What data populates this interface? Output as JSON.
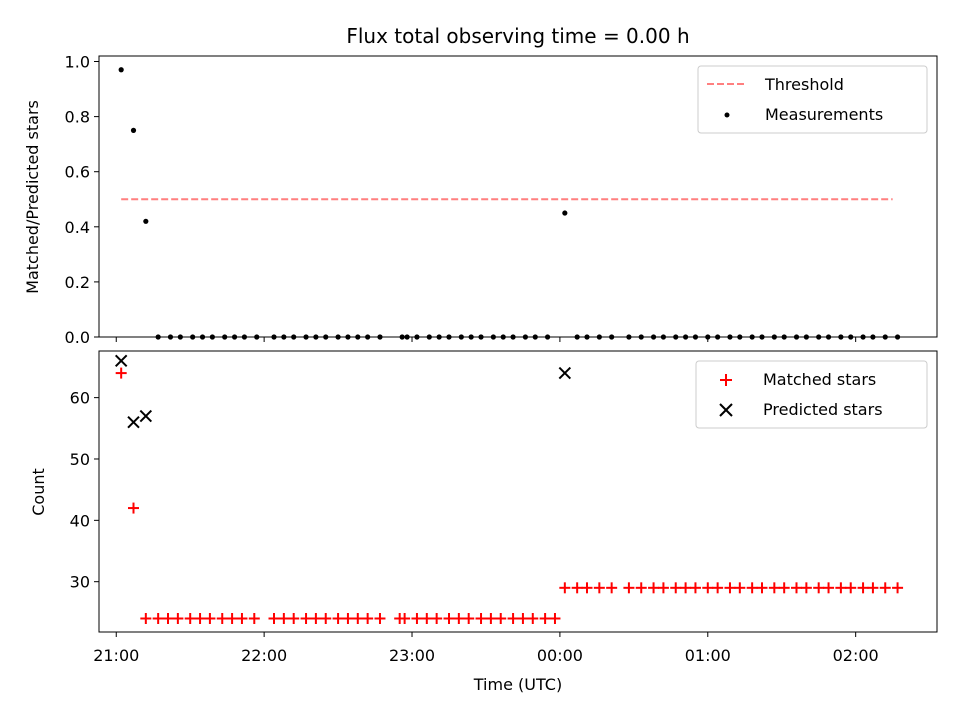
{
  "chart_data": [
    {
      "type": "scatter",
      "title": "Flux total observing time = 0.00 h",
      "xlabel": "",
      "ylabel": "Matched/Predicted stars",
      "x_unit": "time (UTC)",
      "xlim": [
        "20:53",
        "02:33"
      ],
      "ylim": [
        0,
        1.02
      ],
      "yticks": [
        0.0,
        0.2,
        0.4,
        0.6,
        0.8,
        1.0
      ],
      "ytick_labels": [
        "0.0",
        "0.2",
        "0.4",
        "0.6",
        "0.8",
        "1.0"
      ],
      "legend": "top-right",
      "grid": false,
      "series": [
        {
          "name": "Threshold",
          "kind": "line",
          "style": "dashed",
          "color": "#ff7f7f",
          "points": [
            {
              "x": "21:02",
              "y": 0.5
            },
            {
              "x": "02:15",
              "y": 0.5
            }
          ]
        },
        {
          "name": "Measurements",
          "kind": "scatter",
          "marker": "dot",
          "color": "#000000",
          "points": [
            {
              "x": "21:02",
              "y": 0.97
            },
            {
              "x": "21:07",
              "y": 0.75
            },
            {
              "x": "21:12",
              "y": 0.42
            },
            {
              "x": "21:17",
              "y": 0.0
            },
            {
              "x": "21:22",
              "y": 0.0
            },
            {
              "x": "21:26",
              "y": 0.0
            },
            {
              "x": "21:31",
              "y": 0.0
            },
            {
              "x": "21:35",
              "y": 0.0
            },
            {
              "x": "21:39",
              "y": 0.0
            },
            {
              "x": "21:44",
              "y": 0.0
            },
            {
              "x": "21:48",
              "y": 0.0
            },
            {
              "x": "21:52",
              "y": 0.0
            },
            {
              "x": "21:57",
              "y": 0.0
            },
            {
              "x": "22:04",
              "y": 0.0
            },
            {
              "x": "22:08",
              "y": 0.0
            },
            {
              "x": "22:12",
              "y": 0.0
            },
            {
              "x": "22:17",
              "y": 0.0
            },
            {
              "x": "22:21",
              "y": 0.0
            },
            {
              "x": "22:25",
              "y": 0.0
            },
            {
              "x": "22:30",
              "y": 0.0
            },
            {
              "x": "22:34",
              "y": 0.0
            },
            {
              "x": "22:38",
              "y": 0.0
            },
            {
              "x": "22:42",
              "y": 0.0
            },
            {
              "x": "22:47",
              "y": 0.0
            },
            {
              "x": "22:56",
              "y": 0.0
            },
            {
              "x": "22:58",
              "y": 0.0
            },
            {
              "x": "23:02",
              "y": 0.0
            },
            {
              "x": "23:07",
              "y": 0.0
            },
            {
              "x": "23:11",
              "y": 0.0
            },
            {
              "x": "23:15",
              "y": 0.0
            },
            {
              "x": "23:20",
              "y": 0.0
            },
            {
              "x": "23:24",
              "y": 0.0
            },
            {
              "x": "23:28",
              "y": 0.0
            },
            {
              "x": "23:33",
              "y": 0.0
            },
            {
              "x": "23:37",
              "y": 0.0
            },
            {
              "x": "23:41",
              "y": 0.0
            },
            {
              "x": "23:46",
              "y": 0.0
            },
            {
              "x": "23:50",
              "y": 0.0
            },
            {
              "x": "23:55",
              "y": 0.0
            },
            {
              "x": "00:02",
              "y": 0.45
            },
            {
              "x": "00:07",
              "y": 0.0
            },
            {
              "x": "00:11",
              "y": 0.0
            },
            {
              "x": "00:16",
              "y": 0.0
            },
            {
              "x": "00:21",
              "y": 0.0
            },
            {
              "x": "00:28",
              "y": 0.0
            },
            {
              "x": "00:33",
              "y": 0.0
            },
            {
              "x": "00:38",
              "y": 0.0
            },
            {
              "x": "00:42",
              "y": 0.0
            },
            {
              "x": "00:47",
              "y": 0.0
            },
            {
              "x": "00:51",
              "y": 0.0
            },
            {
              "x": "00:55",
              "y": 0.0
            },
            {
              "x": "01:00",
              "y": 0.0
            },
            {
              "x": "01:04",
              "y": 0.0
            },
            {
              "x": "01:09",
              "y": 0.0
            },
            {
              "x": "01:13",
              "y": 0.0
            },
            {
              "x": "01:18",
              "y": 0.0
            },
            {
              "x": "01:22",
              "y": 0.0
            },
            {
              "x": "01:27",
              "y": 0.0
            },
            {
              "x": "01:31",
              "y": 0.0
            },
            {
              "x": "01:36",
              "y": 0.0
            },
            {
              "x": "01:40",
              "y": 0.0
            },
            {
              "x": "01:45",
              "y": 0.0
            },
            {
              "x": "01:49",
              "y": 0.0
            },
            {
              "x": "01:54",
              "y": 0.0
            },
            {
              "x": "01:58",
              "y": 0.0
            },
            {
              "x": "02:03",
              "y": 0.0
            },
            {
              "x": "02:07",
              "y": 0.0
            },
            {
              "x": "02:12",
              "y": 0.0
            },
            {
              "x": "02:17",
              "y": 0.0
            }
          ]
        }
      ]
    },
    {
      "type": "scatter",
      "title": "",
      "xlabel": "Time (UTC)",
      "ylabel": "Count",
      "xlim": [
        "20:53",
        "02:33"
      ],
      "ylim": [
        21.8,
        67.6
      ],
      "xticks": [
        "21:00",
        "22:00",
        "23:00",
        "00:00",
        "01:00",
        "02:00"
      ],
      "xtick_labels": [
        "21:00",
        "22:00",
        "23:00",
        "00:00",
        "01:00",
        "02:00"
      ],
      "yticks": [
        30,
        40,
        50,
        60
      ],
      "ytick_labels": [
        "30",
        "40",
        "50",
        "60"
      ],
      "legend": "top-right",
      "grid": false,
      "series": [
        {
          "name": "Matched stars",
          "kind": "scatter",
          "marker": "plus",
          "color": "#ff0000",
          "points": [
            {
              "x": "21:02",
              "y": 64
            },
            {
              "x": "21:07",
              "y": 42
            },
            {
              "x": "21:12",
              "y": 24
            },
            {
              "x": "21:17",
              "y": 24
            },
            {
              "x": "21:21",
              "y": 24
            },
            {
              "x": "21:25",
              "y": 24
            },
            {
              "x": "21:30",
              "y": 24
            },
            {
              "x": "21:34",
              "y": 24
            },
            {
              "x": "21:38",
              "y": 24
            },
            {
              "x": "21:43",
              "y": 24
            },
            {
              "x": "21:47",
              "y": 24
            },
            {
              "x": "21:51",
              "y": 24
            },
            {
              "x": "21:56",
              "y": 24
            },
            {
              "x": "22:04",
              "y": 24
            },
            {
              "x": "22:08",
              "y": 24
            },
            {
              "x": "22:12",
              "y": 24
            },
            {
              "x": "22:17",
              "y": 24
            },
            {
              "x": "22:21",
              "y": 24
            },
            {
              "x": "22:25",
              "y": 24
            },
            {
              "x": "22:30",
              "y": 24
            },
            {
              "x": "22:34",
              "y": 24
            },
            {
              "x": "22:38",
              "y": 24
            },
            {
              "x": "22:42",
              "y": 24
            },
            {
              "x": "22:47",
              "y": 24
            },
            {
              "x": "22:55",
              "y": 24
            },
            {
              "x": "22:57",
              "y": 24
            },
            {
              "x": "23:02",
              "y": 24
            },
            {
              "x": "23:06",
              "y": 24
            },
            {
              "x": "23:10",
              "y": 24
            },
            {
              "x": "23:15",
              "y": 24
            },
            {
              "x": "23:19",
              "y": 24
            },
            {
              "x": "23:23",
              "y": 24
            },
            {
              "x": "23:28",
              "y": 24
            },
            {
              "x": "23:32",
              "y": 24
            },
            {
              "x": "23:36",
              "y": 24
            },
            {
              "x": "23:41",
              "y": 24
            },
            {
              "x": "23:45",
              "y": 24
            },
            {
              "x": "23:49",
              "y": 24
            },
            {
              "x": "23:54",
              "y": 24
            },
            {
              "x": "23:58",
              "y": 24
            },
            {
              "x": "00:02",
              "y": 29
            },
            {
              "x": "00:07",
              "y": 29
            },
            {
              "x": "00:11",
              "y": 29
            },
            {
              "x": "00:16",
              "y": 29
            },
            {
              "x": "00:21",
              "y": 29
            },
            {
              "x": "00:28",
              "y": 29
            },
            {
              "x": "00:33",
              "y": 29
            },
            {
              "x": "00:38",
              "y": 29
            },
            {
              "x": "00:42",
              "y": 29
            },
            {
              "x": "00:47",
              "y": 29
            },
            {
              "x": "00:51",
              "y": 29
            },
            {
              "x": "00:55",
              "y": 29
            },
            {
              "x": "01:00",
              "y": 29
            },
            {
              "x": "01:04",
              "y": 29
            },
            {
              "x": "01:09",
              "y": 29
            },
            {
              "x": "01:13",
              "y": 29
            },
            {
              "x": "01:18",
              "y": 29
            },
            {
              "x": "01:22",
              "y": 29
            },
            {
              "x": "01:27",
              "y": 29
            },
            {
              "x": "01:31",
              "y": 29
            },
            {
              "x": "01:36",
              "y": 29
            },
            {
              "x": "01:40",
              "y": 29
            },
            {
              "x": "01:45",
              "y": 29
            },
            {
              "x": "01:49",
              "y": 29
            },
            {
              "x": "01:54",
              "y": 29
            },
            {
              "x": "01:58",
              "y": 29
            },
            {
              "x": "02:03",
              "y": 29
            },
            {
              "x": "02:07",
              "y": 29
            },
            {
              "x": "02:12",
              "y": 29
            },
            {
              "x": "02:17",
              "y": 29
            }
          ]
        },
        {
          "name": "Predicted stars",
          "kind": "scatter",
          "marker": "x",
          "color": "#000000",
          "points": [
            {
              "x": "21:02",
              "y": 66
            },
            {
              "x": "21:07",
              "y": 56
            },
            {
              "x": "21:12",
              "y": 57
            },
            {
              "x": "00:02",
              "y": 64
            }
          ]
        }
      ]
    }
  ]
}
